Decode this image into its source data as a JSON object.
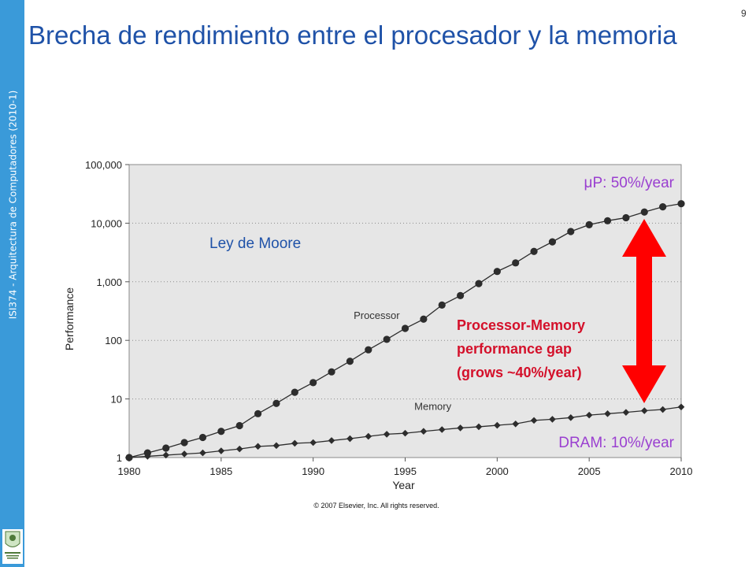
{
  "slide": {
    "title": "Brecha de rendimiento entre el procesador y la memoria",
    "number": "9",
    "sidebar_text": "ISI374 - Arquitectura de Computadores (2010-1)",
    "theme_color": "#3a9ad9",
    "title_color": "#1f52a8"
  },
  "chart_data": {
    "type": "line",
    "title": "",
    "xlabel": "Year",
    "ylabel": "Performance",
    "scale": "log",
    "xlim": [
      1980,
      2010
    ],
    "ylim": [
      1,
      100000
    ],
    "grid": "dotted horizontal",
    "x_ticks": [
      "1980",
      "1985",
      "1990",
      "1995",
      "2000",
      "2005",
      "2010"
    ],
    "y_ticks": [
      "1",
      "10",
      "100",
      "1,000",
      "10,000",
      "100,000"
    ],
    "x": [
      1980,
      1981,
      1982,
      1983,
      1984,
      1985,
      1986,
      1987,
      1988,
      1989,
      1990,
      1991,
      1992,
      1993,
      1994,
      1995,
      1996,
      1997,
      1998,
      1999,
      2000,
      2001,
      2002,
      2003,
      2004,
      2005,
      2006,
      2007,
      2008,
      2009,
      2010
    ],
    "series": [
      {
        "name": "Processor",
        "marker": "circle",
        "values": [
          1,
          1.2,
          1.45,
          1.8,
          2.2,
          2.8,
          3.5,
          5.6,
          8.4,
          13,
          19,
          29,
          44,
          69,
          104,
          160,
          230,
          400,
          580,
          930,
          1500,
          2100,
          3300,
          4800,
          7200,
          9400,
          11000,
          12400,
          15500,
          19000,
          21500
        ]
      },
      {
        "name": "Memory",
        "marker": "diamond",
        "values": [
          1,
          1.05,
          1.1,
          1.15,
          1.2,
          1.3,
          1.4,
          1.55,
          1.6,
          1.75,
          1.8,
          1.95,
          2.1,
          2.3,
          2.5,
          2.6,
          2.8,
          3.0,
          3.2,
          3.35,
          3.55,
          3.75,
          4.3,
          4.5,
          4.8,
          5.3,
          5.6,
          5.9,
          6.3,
          6.6,
          7.3
        ]
      }
    ],
    "annotations": {
      "moore": "Ley de Moore",
      "up": "P: 50%/year",
      "mu": "μ",
      "dram": "DRAM: 10%/year",
      "gap_lines": [
        "Processor-Memory",
        "performance gap",
        "(grows ~40%/year)"
      ],
      "copyright": "© 2007 Elsevier, Inc. All rights reserved."
    },
    "colors": {
      "plot_bg": "#e6e6e6",
      "series": "#2d2d2d",
      "annotation_purple": "#9a3fd0",
      "gap_text": "#d4102a",
      "arrow": "#ff0000",
      "moore_text": "#1f52a8"
    }
  }
}
